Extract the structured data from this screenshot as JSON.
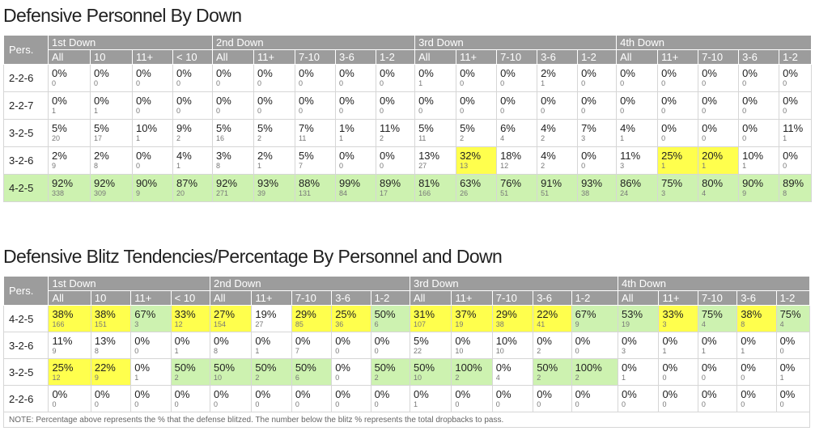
{
  "personnel": {
    "title": "Defensive Personnel By Down",
    "pers_label": "Pers.",
    "groups": [
      {
        "label": "1st Down",
        "span": 4
      },
      {
        "label": "2nd Down",
        "span": 5
      },
      {
        "label": "3rd Down",
        "span": 5
      },
      {
        "label": "4th Down",
        "span": 5
      }
    ],
    "subheaders": [
      "All",
      "10",
      "11+",
      "< 10",
      "All",
      "11+",
      "7-10",
      "3-6",
      "1-2",
      "All",
      "11+",
      "7-10",
      "3-6",
      "1-2",
      "All",
      "11+",
      "7-10",
      "3-6",
      "1-2"
    ],
    "rows": [
      {
        "label": "2-2-6",
        "cells": [
          {
            "p": "0%",
            "n": "0"
          },
          {
            "p": "0%",
            "n": "0"
          },
          {
            "p": "0%",
            "n": "0"
          },
          {
            "p": "0%",
            "n": "0"
          },
          {
            "p": "0%",
            "n": "0"
          },
          {
            "p": "0%",
            "n": "0"
          },
          {
            "p": "0%",
            "n": "0"
          },
          {
            "p": "0%",
            "n": "0"
          },
          {
            "p": "0%",
            "n": "0"
          },
          {
            "p": "0%",
            "n": "1"
          },
          {
            "p": "0%",
            "n": "0"
          },
          {
            "p": "0%",
            "n": "0"
          },
          {
            "p": "2%",
            "n": "1"
          },
          {
            "p": "0%",
            "n": "0"
          },
          {
            "p": "0%",
            "n": "0"
          },
          {
            "p": "0%",
            "n": "0"
          },
          {
            "p": "0%",
            "n": "0"
          },
          {
            "p": "0%",
            "n": "0"
          },
          {
            "p": "0%",
            "n": "0"
          }
        ]
      },
      {
        "label": "2-2-7",
        "cells": [
          {
            "p": "0%",
            "n": "1"
          },
          {
            "p": "0%",
            "n": "1"
          },
          {
            "p": "0%",
            "n": "0"
          },
          {
            "p": "0%",
            "n": "0"
          },
          {
            "p": "0%",
            "n": "0"
          },
          {
            "p": "0%",
            "n": "0"
          },
          {
            "p": "0%",
            "n": "0"
          },
          {
            "p": "0%",
            "n": "0"
          },
          {
            "p": "0%",
            "n": "0"
          },
          {
            "p": "0%",
            "n": "0"
          },
          {
            "p": "0%",
            "n": "0"
          },
          {
            "p": "0%",
            "n": "0"
          },
          {
            "p": "0%",
            "n": "0"
          },
          {
            "p": "0%",
            "n": "0"
          },
          {
            "p": "0%",
            "n": "0"
          },
          {
            "p": "0%",
            "n": "0"
          },
          {
            "p": "0%",
            "n": "0"
          },
          {
            "p": "0%",
            "n": "0"
          },
          {
            "p": "0%",
            "n": "0"
          }
        ]
      },
      {
        "label": "3-2-5",
        "cells": [
          {
            "p": "5%",
            "n": "20"
          },
          {
            "p": "5%",
            "n": "17"
          },
          {
            "p": "10%",
            "n": "1"
          },
          {
            "p": "9%",
            "n": "2"
          },
          {
            "p": "5%",
            "n": "16"
          },
          {
            "p": "5%",
            "n": "2"
          },
          {
            "p": "7%",
            "n": "11"
          },
          {
            "p": "1%",
            "n": "1"
          },
          {
            "p": "11%",
            "n": "2"
          },
          {
            "p": "5%",
            "n": "11"
          },
          {
            "p": "5%",
            "n": "2"
          },
          {
            "p": "6%",
            "n": "4"
          },
          {
            "p": "4%",
            "n": "2"
          },
          {
            "p": "7%",
            "n": "3"
          },
          {
            "p": "4%",
            "n": "1"
          },
          {
            "p": "0%",
            "n": "0"
          },
          {
            "p": "0%",
            "n": "0"
          },
          {
            "p": "0%",
            "n": "0"
          },
          {
            "p": "11%",
            "n": "1"
          }
        ]
      },
      {
        "label": "3-2-6",
        "cells": [
          {
            "p": "2%",
            "n": "9"
          },
          {
            "p": "2%",
            "n": "8"
          },
          {
            "p": "0%",
            "n": "0"
          },
          {
            "p": "4%",
            "n": "1"
          },
          {
            "p": "3%",
            "n": "8"
          },
          {
            "p": "2%",
            "n": "1"
          },
          {
            "p": "5%",
            "n": "7"
          },
          {
            "p": "0%",
            "n": "0"
          },
          {
            "p": "0%",
            "n": "0"
          },
          {
            "p": "13%",
            "n": "27"
          },
          {
            "p": "32%",
            "n": "13",
            "hl": "y"
          },
          {
            "p": "18%",
            "n": "12"
          },
          {
            "p": "4%",
            "n": "2"
          },
          {
            "p": "0%",
            "n": "0"
          },
          {
            "p": "11%",
            "n": "3"
          },
          {
            "p": "25%",
            "n": "1",
            "hl": "y"
          },
          {
            "p": "20%",
            "n": "1",
            "hl": "y"
          },
          {
            "p": "10%",
            "n": "1"
          },
          {
            "p": "0%",
            "n": "0"
          }
        ]
      },
      {
        "label": "4-2-5",
        "green": true,
        "cells": [
          {
            "p": "92%",
            "n": "338"
          },
          {
            "p": "92%",
            "n": "309"
          },
          {
            "p": "90%",
            "n": "9"
          },
          {
            "p": "87%",
            "n": "20"
          },
          {
            "p": "92%",
            "n": "271"
          },
          {
            "p": "93%",
            "n": "39"
          },
          {
            "p": "88%",
            "n": "131"
          },
          {
            "p": "99%",
            "n": "84"
          },
          {
            "p": "89%",
            "n": "17"
          },
          {
            "p": "81%",
            "n": "166"
          },
          {
            "p": "63%",
            "n": "26"
          },
          {
            "p": "76%",
            "n": "51"
          },
          {
            "p": "91%",
            "n": "51"
          },
          {
            "p": "93%",
            "n": "38"
          },
          {
            "p": "86%",
            "n": "24"
          },
          {
            "p": "75%",
            "n": "3"
          },
          {
            "p": "80%",
            "n": "4"
          },
          {
            "p": "90%",
            "n": "9"
          },
          {
            "p": "89%",
            "n": "8"
          }
        ]
      }
    ]
  },
  "blitz": {
    "title": "Defensive Blitz Tendencies/Percentage By Personnel and Down",
    "pers_label": "Pers.",
    "groups": [
      {
        "label": "1st Down",
        "span": 4
      },
      {
        "label": "2nd Down",
        "span": 5
      },
      {
        "label": "3rd Down",
        "span": 5
      },
      {
        "label": "4th Down",
        "span": 5
      }
    ],
    "subheaders": [
      "All",
      "10",
      "11+",
      "< 10",
      "All",
      "11+",
      "7-10",
      "3-6",
      "1-2",
      "All",
      "11+",
      "7-10",
      "3-6",
      "1-2",
      "All",
      "11+",
      "7-10",
      "3-6",
      "1-2"
    ],
    "rows": [
      {
        "label": "4-2-5",
        "cells": [
          {
            "p": "38%",
            "n": "166",
            "hl": "y"
          },
          {
            "p": "38%",
            "n": "151",
            "hl": "y"
          },
          {
            "p": "67%",
            "n": "3",
            "hl": "g"
          },
          {
            "p": "33%",
            "n": "12",
            "hl": "y"
          },
          {
            "p": "27%",
            "n": "154",
            "hl": "y"
          },
          {
            "p": "19%",
            "n": "27"
          },
          {
            "p": "29%",
            "n": "85",
            "hl": "y"
          },
          {
            "p": "25%",
            "n": "36",
            "hl": "y"
          },
          {
            "p": "50%",
            "n": "6",
            "hl": "g"
          },
          {
            "p": "31%",
            "n": "107",
            "hl": "y"
          },
          {
            "p": "37%",
            "n": "19",
            "hl": "y"
          },
          {
            "p": "29%",
            "n": "38",
            "hl": "y"
          },
          {
            "p": "22%",
            "n": "41",
            "hl": "y"
          },
          {
            "p": "67%",
            "n": "9",
            "hl": "g"
          },
          {
            "p": "53%",
            "n": "19",
            "hl": "g"
          },
          {
            "p": "33%",
            "n": "3",
            "hl": "y"
          },
          {
            "p": "75%",
            "n": "4",
            "hl": "g"
          },
          {
            "p": "38%",
            "n": "8",
            "hl": "y"
          },
          {
            "p": "75%",
            "n": "4",
            "hl": "g"
          }
        ]
      },
      {
        "label": "3-2-6",
        "cells": [
          {
            "p": "11%",
            "n": "9"
          },
          {
            "p": "13%",
            "n": "8"
          },
          {
            "p": "0%",
            "n": "0"
          },
          {
            "p": "0%",
            "n": "1"
          },
          {
            "p": "0%",
            "n": "8"
          },
          {
            "p": "0%",
            "n": "1"
          },
          {
            "p": "0%",
            "n": "7"
          },
          {
            "p": "0%",
            "n": "0"
          },
          {
            "p": "0%",
            "n": "0"
          },
          {
            "p": "5%",
            "n": "22"
          },
          {
            "p": "0%",
            "n": "10"
          },
          {
            "p": "10%",
            "n": "10"
          },
          {
            "p": "0%",
            "n": "2"
          },
          {
            "p": "0%",
            "n": "0"
          },
          {
            "p": "0%",
            "n": "3"
          },
          {
            "p": "0%",
            "n": "1"
          },
          {
            "p": "0%",
            "n": "1"
          },
          {
            "p": "0%",
            "n": "1"
          },
          {
            "p": "0%",
            "n": "0"
          }
        ]
      },
      {
        "label": "3-2-5",
        "cells": [
          {
            "p": "25%",
            "n": "12",
            "hl": "y"
          },
          {
            "p": "22%",
            "n": "9",
            "hl": "y"
          },
          {
            "p": "0%",
            "n": "1"
          },
          {
            "p": "50%",
            "n": "2",
            "hl": "g"
          },
          {
            "p": "50%",
            "n": "10",
            "hl": "g"
          },
          {
            "p": "50%",
            "n": "2",
            "hl": "g"
          },
          {
            "p": "50%",
            "n": "6",
            "hl": "g"
          },
          {
            "p": "0%",
            "n": "0"
          },
          {
            "p": "50%",
            "n": "2",
            "hl": "g"
          },
          {
            "p": "50%",
            "n": "10",
            "hl": "g"
          },
          {
            "p": "100%",
            "n": "2",
            "hl": "g"
          },
          {
            "p": "0%",
            "n": "4"
          },
          {
            "p": "50%",
            "n": "2",
            "hl": "g"
          },
          {
            "p": "100%",
            "n": "2",
            "hl": "g"
          },
          {
            "p": "0%",
            "n": "1"
          },
          {
            "p": "0%",
            "n": "0"
          },
          {
            "p": "0%",
            "n": "0"
          },
          {
            "p": "0%",
            "n": "0"
          },
          {
            "p": "0%",
            "n": "1"
          }
        ]
      },
      {
        "label": "2-2-6",
        "cells": [
          {
            "p": "0%",
            "n": "0"
          },
          {
            "p": "0%",
            "n": "0"
          },
          {
            "p": "0%",
            "n": "0"
          },
          {
            "p": "0%",
            "n": "0"
          },
          {
            "p": "0%",
            "n": "0"
          },
          {
            "p": "0%",
            "n": "0"
          },
          {
            "p": "0%",
            "n": "0"
          },
          {
            "p": "0%",
            "n": "0"
          },
          {
            "p": "0%",
            "n": "0"
          },
          {
            "p": "0%",
            "n": "1"
          },
          {
            "p": "0%",
            "n": "0"
          },
          {
            "p": "0%",
            "n": "0"
          },
          {
            "p": "0%",
            "n": "0"
          },
          {
            "p": "0%",
            "n": "0"
          },
          {
            "p": "0%",
            "n": "0"
          },
          {
            "p": "0%",
            "n": "0"
          },
          {
            "p": "0%",
            "n": "0"
          },
          {
            "p": "0%",
            "n": "0"
          },
          {
            "p": "0%",
            "n": "0"
          }
        ]
      }
    ],
    "note": "NOTE: Percentage above represents the % that the defense blitzed. The number below the blitz % represents the total dropbacks to pass."
  },
  "colors": {
    "header_bg": "#9c9c9c",
    "highlight_yellow": "#ffff4d",
    "highlight_green": "#cdf2b0"
  }
}
